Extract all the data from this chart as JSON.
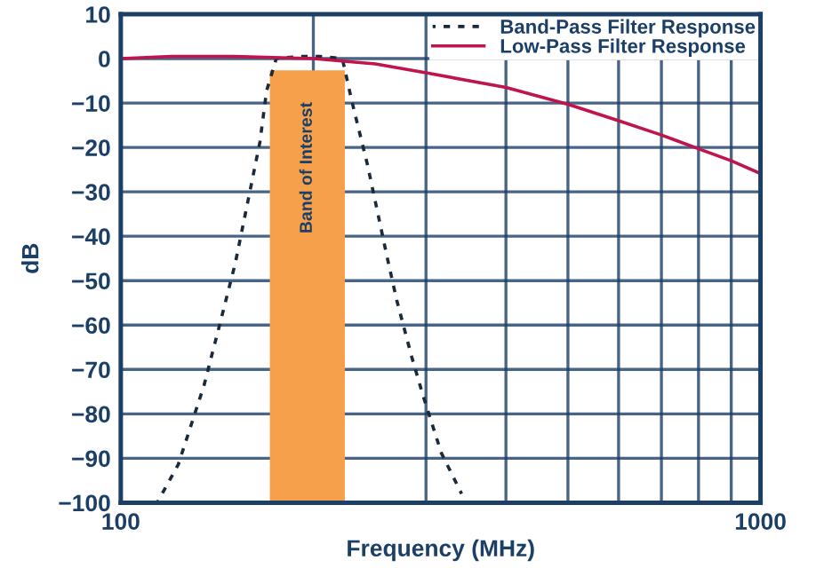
{
  "chart_data": {
    "type": "line",
    "xlabel": "Frequency (MHz)",
    "ylabel": "dB",
    "log": "x",
    "xlim": [
      100,
      1000
    ],
    "xticks": [
      100,
      {
        "value": 200,
        "label": null
      },
      {
        "value": 300,
        "label": null
      },
      {
        "value": 400,
        "label": null
      },
      {
        "value": 500,
        "label": null
      },
      {
        "value": 600,
        "label": null
      },
      {
        "value": 700,
        "label": null
      },
      {
        "value": 800,
        "label": null
      },
      {
        "value": 900,
        "label": null
      },
      1000
    ],
    "ylim": [
      -100,
      10
    ],
    "yticks": [
      -100,
      -90,
      -80,
      -70,
      -60,
      -50,
      -40,
      -30,
      -20,
      -10,
      0,
      10
    ],
    "grid": true,
    "legend": "top right",
    "marker": "none",
    "series": [
      {
        "name": "Band-Pass Filter Response",
        "color": "#1a2a3a",
        "line_style": "dashed",
        "x": [
          114,
          123,
          135,
          143,
          151,
          160,
          165,
          169,
          175,
          190,
          205,
          222,
          230,
          243,
          261,
          270,
          285,
          297,
          317,
          341
        ],
        "values": [
          -100,
          -91.4,
          -73.5,
          -59.5,
          -46.1,
          -28.3,
          -18.8,
          -7.3,
          0,
          0.5,
          0.5,
          0,
          -9.9,
          -23.9,
          -44.9,
          -54.4,
          -67.2,
          -76,
          -88.8,
          -98
        ]
      },
      {
        "name": "Low-Pass Filter Response",
        "color": "#c0144c",
        "line_style": "solid",
        "x": [
          100,
          120,
          150,
          200,
          250,
          300,
          400,
          500,
          600,
          700,
          800,
          900,
          1000
        ],
        "values": [
          0,
          0.5,
          0.5,
          0,
          -1.2,
          -3.2,
          -6.5,
          -10.3,
          -14,
          -17.2,
          -20.3,
          -23,
          -25.9
        ]
      }
    ],
    "bands": [
      {
        "axis": "x",
        "from": 171,
        "to": 224,
        "label": "Band of Interest",
        "color": "#f7a04b"
      }
    ]
  }
}
